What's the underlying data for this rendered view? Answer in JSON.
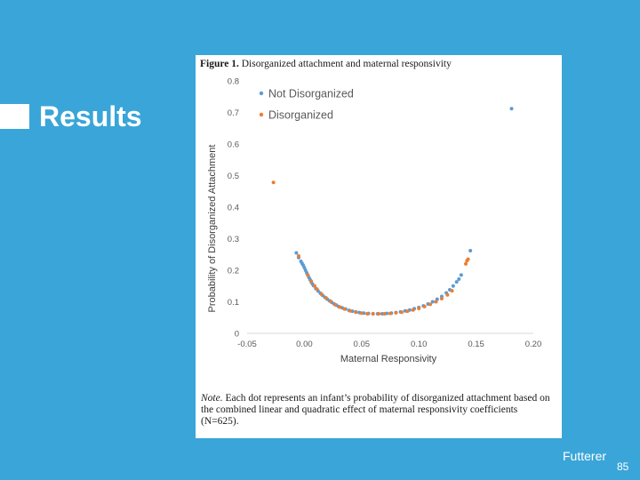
{
  "slide": {
    "title": "Results",
    "author": "Futterer",
    "page_number": "85"
  },
  "figure": {
    "label": "Figure 1.",
    "caption": "Disorganized attachment and maternal responsivity",
    "note_label": "Note.",
    "note_text": "Each dot represents an infant’s probability of disorganized attachment based on the combined linear and quadratic effect of maternal responsivity coefficients (N=625)."
  },
  "colors": {
    "background": "#3aa5d8",
    "not_disorganized": "#5b9bd5",
    "disorganized": "#ed7d31"
  },
  "chart_data": {
    "type": "scatter",
    "title": "",
    "xlabel": "Maternal Responsivity",
    "ylabel": "Probability of Disorganized Attachment",
    "xlim": [
      -0.05,
      0.2
    ],
    "ylim": [
      0,
      0.8
    ],
    "xticks": [
      -0.05,
      0.0,
      0.05,
      0.1,
      0.15,
      0.2
    ],
    "xtick_labels": [
      "-0.05",
      "0.00",
      "0.05",
      "0.10",
      "0.15",
      "0.20"
    ],
    "yticks": [
      0,
      0.1,
      0.2,
      0.3,
      0.4,
      0.5,
      0.6,
      0.7,
      0.8
    ],
    "ytick_labels": [
      "0",
      "0.1",
      "0.2",
      "0.3",
      "0.4",
      "0.5",
      "0.6",
      "0.7",
      "0.8"
    ],
    "grid": false,
    "legend_position": "top-left",
    "series": [
      {
        "name": "Not Disorganized",
        "color": "#5b9bd5",
        "x": [
          -0.007,
          -0.005,
          -0.003,
          -0.002,
          -0.001,
          0.0,
          0.001,
          0.002,
          0.003,
          0.004,
          0.005,
          0.006,
          0.007,
          0.008,
          0.01,
          0.012,
          0.014,
          0.016,
          0.018,
          0.02,
          0.022,
          0.024,
          0.026,
          0.028,
          0.03,
          0.033,
          0.036,
          0.039,
          0.042,
          0.045,
          0.048,
          0.052,
          0.056,
          0.06,
          0.064,
          0.068,
          0.072,
          0.076,
          0.08,
          0.084,
          0.088,
          0.092,
          0.096,
          0.1,
          0.104,
          0.108,
          0.112,
          0.116,
          0.12,
          0.124,
          0.127,
          0.13,
          0.133,
          0.135,
          0.137,
          0.145,
          0.181
        ],
        "y": [
          0.255,
          0.24,
          0.228,
          0.222,
          0.216,
          0.208,
          0.2,
          0.192,
          0.185,
          0.177,
          0.17,
          0.163,
          0.157,
          0.151,
          0.142,
          0.134,
          0.127,
          0.12,
          0.114,
          0.108,
          0.103,
          0.098,
          0.093,
          0.089,
          0.085,
          0.081,
          0.077,
          0.073,
          0.07,
          0.068,
          0.066,
          0.064,
          0.063,
          0.062,
          0.062,
          0.062,
          0.063,
          0.064,
          0.066,
          0.068,
          0.071,
          0.074,
          0.078,
          0.082,
          0.087,
          0.093,
          0.1,
          0.108,
          0.117,
          0.128,
          0.138,
          0.15,
          0.163,
          0.172,
          0.185,
          0.262,
          0.712
        ]
      },
      {
        "name": "Disorganized",
        "color": "#ed7d31",
        "x": [
          -0.027,
          -0.005,
          0.003,
          0.006,
          0.009,
          0.011,
          0.015,
          0.019,
          0.023,
          0.027,
          0.031,
          0.035,
          0.04,
          0.045,
          0.05,
          0.055,
          0.06,
          0.065,
          0.07,
          0.075,
          0.08,
          0.085,
          0.09,
          0.095,
          0.1,
          0.105,
          0.11,
          0.115,
          0.12,
          0.125,
          0.129,
          0.141,
          0.142,
          0.143
        ],
        "y": [
          0.478,
          0.245,
          0.185,
          0.165,
          0.15,
          0.14,
          0.124,
          0.112,
          0.101,
          0.091,
          0.083,
          0.077,
          0.071,
          0.067,
          0.064,
          0.062,
          0.062,
          0.062,
          0.062,
          0.063,
          0.065,
          0.067,
          0.07,
          0.074,
          0.079,
          0.085,
          0.092,
          0.1,
          0.11,
          0.122,
          0.135,
          0.22,
          0.23,
          0.235
        ]
      }
    ]
  }
}
